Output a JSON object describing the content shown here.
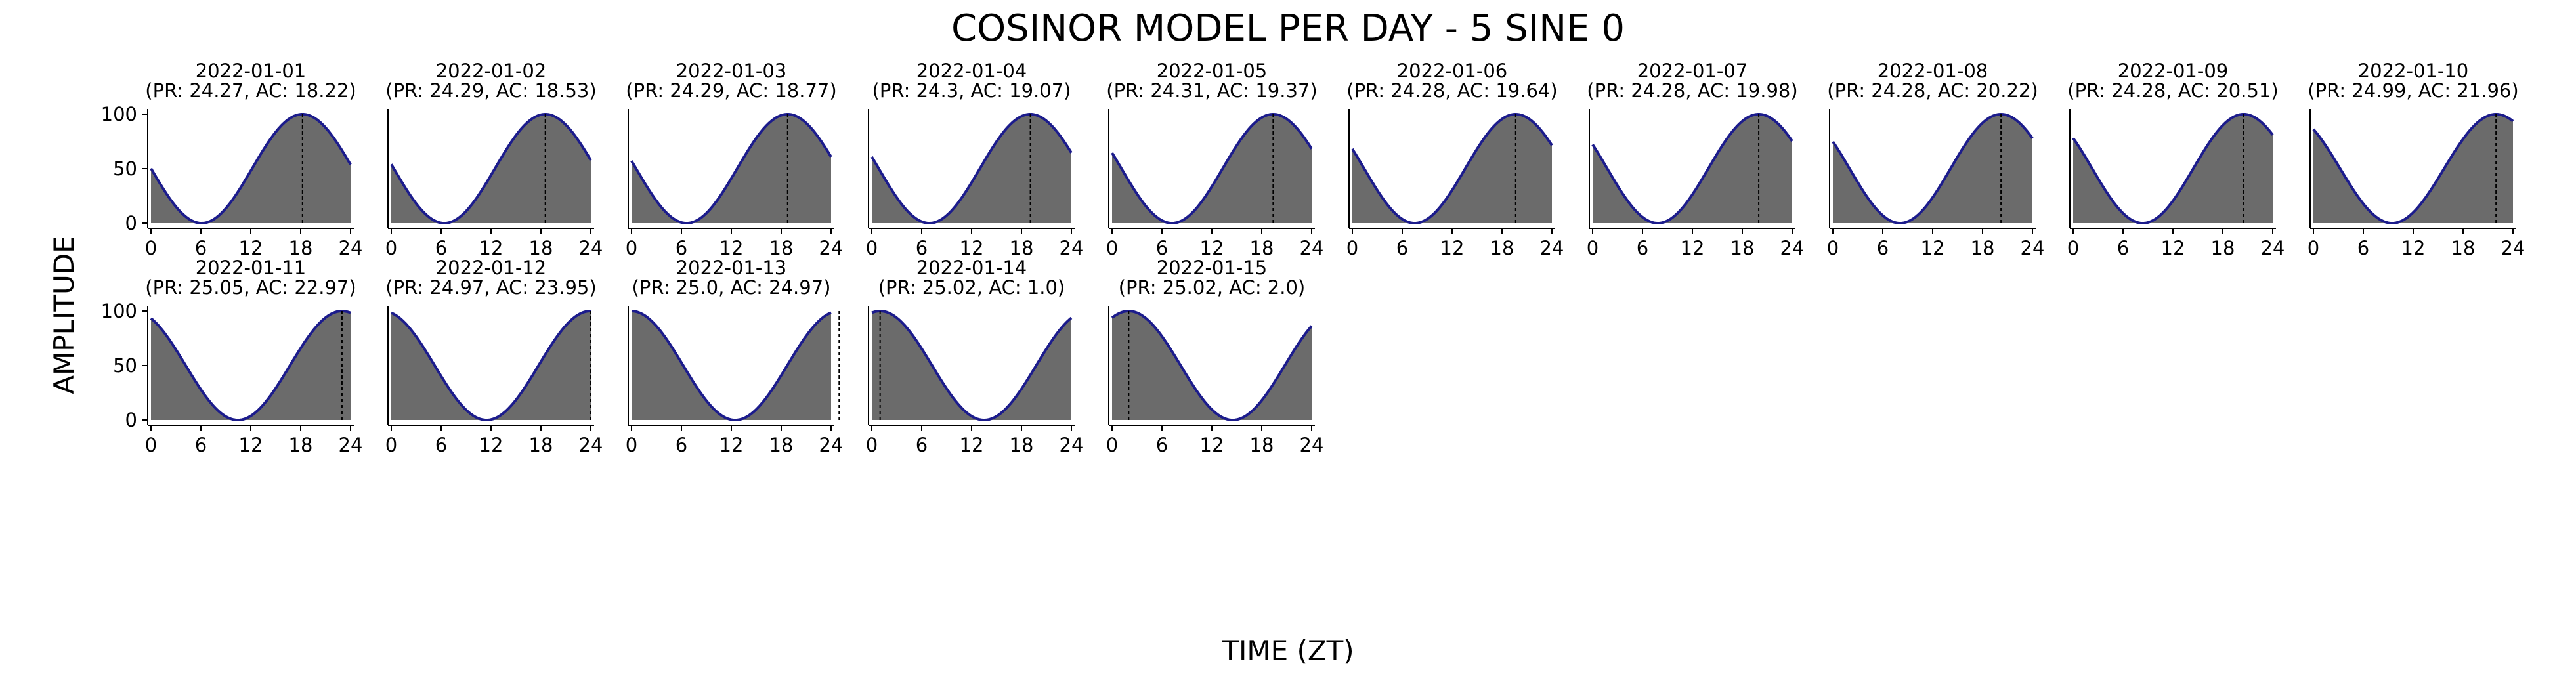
{
  "figure": {
    "title": "COSINOR MODEL PER DAY - 5 SINE 0",
    "ylabel": "AMPLITUDE",
    "xlabel": "TIME (ZT)"
  },
  "colors": {
    "fill": "#6b6b6b",
    "curve": "#1c1c8c",
    "acrophase_line": "#000000",
    "axes": "#000000",
    "background": "#ffffff"
  },
  "chart_data": {
    "type": "area",
    "layout": "small multiples, 2 rows of up to 10 panels",
    "model": "cosinor: y = 50 + 50*cos(2*pi*(t - AC)/PR)",
    "title": "COSINOR MODEL PER DAY - 5 SINE 0",
    "xlabel": "TIME (ZT)",
    "ylabel": "AMPLITUDE",
    "xlim": [
      0,
      24
    ],
    "ylim": [
      0,
      100
    ],
    "xticks": [
      0,
      6,
      12,
      18,
      24
    ],
    "yticks": [
      0,
      50,
      100
    ],
    "grid": false,
    "panels": [
      {
        "date": "2022-01-01",
        "pr": 24.27,
        "ac": 18.22,
        "subtitle": "(PR: 24.27, AC: 18.22)"
      },
      {
        "date": "2022-01-02",
        "pr": 24.29,
        "ac": 18.53,
        "subtitle": "(PR: 24.29, AC: 18.53)"
      },
      {
        "date": "2022-01-03",
        "pr": 24.29,
        "ac": 18.77,
        "subtitle": "(PR: 24.29, AC: 18.77)"
      },
      {
        "date": "2022-01-04",
        "pr": 24.3,
        "ac": 19.07,
        "subtitle": "(PR: 24.3, AC: 19.07)"
      },
      {
        "date": "2022-01-05",
        "pr": 24.31,
        "ac": 19.37,
        "subtitle": "(PR: 24.31, AC: 19.37)"
      },
      {
        "date": "2022-01-06",
        "pr": 24.28,
        "ac": 19.64,
        "subtitle": "(PR: 24.28, AC: 19.64)"
      },
      {
        "date": "2022-01-07",
        "pr": 24.28,
        "ac": 19.98,
        "subtitle": "(PR: 24.28, AC: 19.98)"
      },
      {
        "date": "2022-01-08",
        "pr": 24.28,
        "ac": 20.22,
        "subtitle": "(PR: 24.28, AC: 20.22)"
      },
      {
        "date": "2022-01-09",
        "pr": 24.28,
        "ac": 20.51,
        "subtitle": "(PR: 24.28, AC: 20.51)"
      },
      {
        "date": "2022-01-10",
        "pr": 24.99,
        "ac": 21.96,
        "subtitle": "(PR: 24.99, AC: 21.96)"
      },
      {
        "date": "2022-01-11",
        "pr": 25.05,
        "ac": 22.97,
        "subtitle": "(PR: 25.05, AC: 22.97)"
      },
      {
        "date": "2022-01-12",
        "pr": 24.97,
        "ac": 23.95,
        "subtitle": "(PR: 24.97, AC: 23.95)"
      },
      {
        "date": "2022-01-13",
        "pr": 25.0,
        "ac": 24.97,
        "subtitle": "(PR: 25.0, AC: 24.97)"
      },
      {
        "date": "2022-01-14",
        "pr": 25.02,
        "ac": 1.0,
        "subtitle": "(PR: 25.02, AC: 1.0)"
      },
      {
        "date": "2022-01-15",
        "pr": 25.02,
        "ac": 2.0,
        "subtitle": "(PR: 25.02, AC: 2.0)"
      }
    ]
  }
}
